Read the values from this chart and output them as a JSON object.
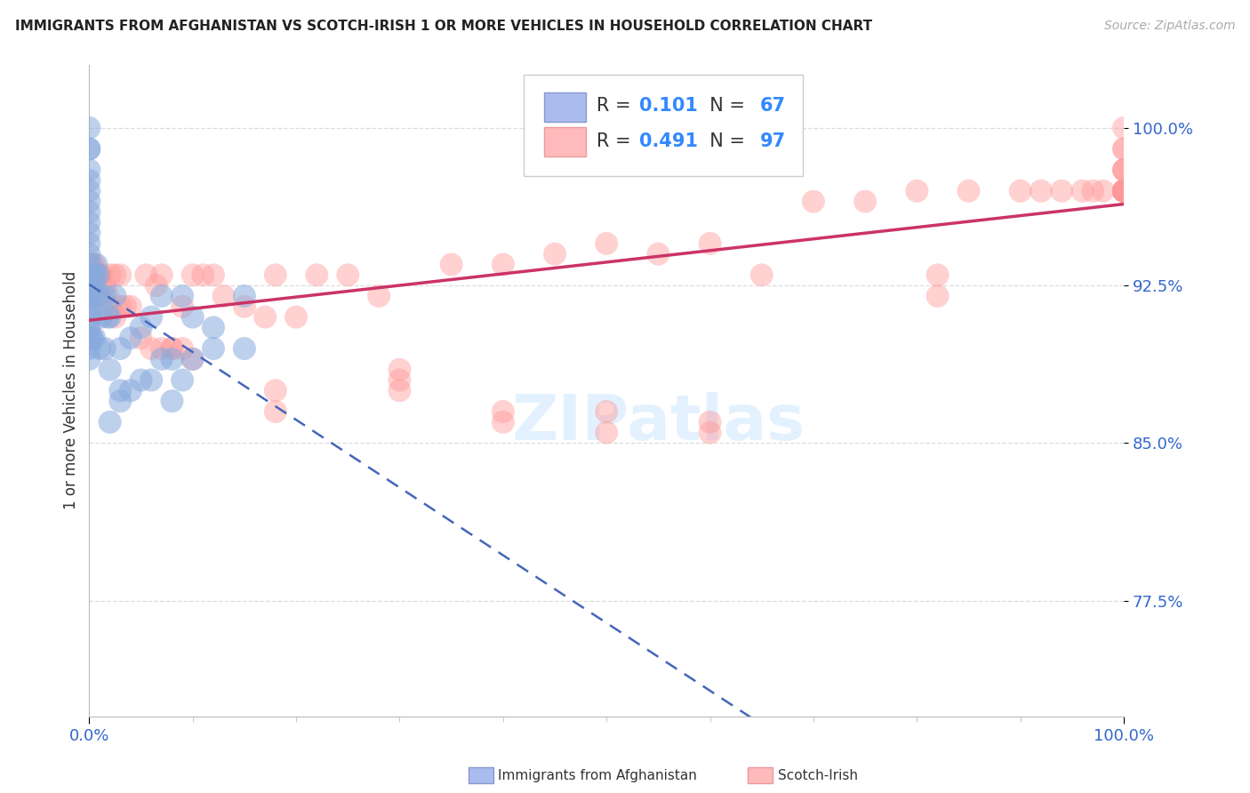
{
  "title": "IMMIGRANTS FROM AFGHANISTAN VS SCOTCH-IRISH 1 OR MORE VEHICLES IN HOUSEHOLD CORRELATION CHART",
  "source": "Source: ZipAtlas.com",
  "ylabel": "1 or more Vehicles in Household",
  "legend_label1": "Immigrants from Afghanistan",
  "legend_label2": "Scotch-Irish",
  "R1": "0.101",
  "N1": "67",
  "R2": "0.491",
  "N2": "97",
  "color_blue": "#88AADD",
  "color_pink": "#FF9999",
  "trend_blue": "#4466BB",
  "trend_pink": "#CC3366",
  "text_dark": "#222222",
  "text_blue_val": "#3388FF",
  "text_source": "#AAAAAA",
  "grid_color": "#DDDDDD",
  "yticks": [
    0.775,
    0.85,
    0.925,
    1.0
  ],
  "ytick_labels": [
    "77.5%",
    "85.0%",
    "92.5%",
    "100.0%"
  ],
  "xtick_labels": [
    "0.0%",
    "100.0%"
  ],
  "xlim": [
    0.0,
    1.0
  ],
  "ylim": [
    0.72,
    1.03
  ],
  "blue_x": [
    0.0,
    0.0,
    0.0,
    0.0,
    0.0,
    0.0,
    0.0,
    0.0,
    0.0,
    0.0,
    0.0,
    0.0,
    0.0,
    0.0,
    0.0,
    0.0,
    0.0,
    0.0,
    0.0,
    0.0,
    0.0,
    0.0,
    0.001,
    0.001,
    0.001,
    0.002,
    0.002,
    0.003,
    0.003,
    0.004,
    0.005,
    0.005,
    0.006,
    0.007,
    0.008,
    0.009,
    0.01,
    0.01,
    0.012,
    0.015,
    0.015,
    0.018,
    0.02,
    0.02,
    0.025,
    0.03,
    0.03,
    0.04,
    0.05,
    0.06,
    0.07,
    0.08,
    0.09,
    0.1,
    0.12,
    0.15,
    0.02,
    0.03,
    0.04,
    0.05,
    0.06,
    0.07,
    0.08,
    0.09,
    0.1,
    0.12,
    0.15
  ],
  "blue_y": [
    1.0,
    0.99,
    0.99,
    0.98,
    0.975,
    0.97,
    0.965,
    0.96,
    0.955,
    0.95,
    0.945,
    0.94,
    0.935,
    0.93,
    0.925,
    0.92,
    0.915,
    0.91,
    0.905,
    0.9,
    0.895,
    0.89,
    0.93,
    0.92,
    0.91,
    0.92,
    0.9,
    0.925,
    0.9,
    0.93,
    0.925,
    0.9,
    0.93,
    0.935,
    0.92,
    0.93,
    0.92,
    0.895,
    0.91,
    0.92,
    0.895,
    0.91,
    0.91,
    0.885,
    0.92,
    0.895,
    0.875,
    0.9,
    0.905,
    0.91,
    0.92,
    0.89,
    0.92,
    0.91,
    0.905,
    0.92,
    0.86,
    0.87,
    0.875,
    0.88,
    0.88,
    0.89,
    0.87,
    0.88,
    0.89,
    0.895,
    0.895
  ],
  "pink_x": [
    0.0,
    0.0,
    0.0,
    0.0,
    0.001,
    0.002,
    0.003,
    0.004,
    0.005,
    0.006,
    0.007,
    0.008,
    0.009,
    0.01,
    0.012,
    0.015,
    0.018,
    0.02,
    0.02,
    0.025,
    0.025,
    0.03,
    0.03,
    0.035,
    0.04,
    0.05,
    0.055,
    0.06,
    0.065,
    0.07,
    0.08,
    0.09,
    0.1,
    0.11,
    0.12,
    0.13,
    0.15,
    0.17,
    0.18,
    0.2,
    0.22,
    0.25,
    0.28,
    0.3,
    0.35,
    0.4,
    0.45,
    0.5,
    0.55,
    0.6,
    0.65,
    1.0,
    1.0,
    1.0,
    1.0,
    1.0,
    1.0,
    1.0,
    1.0,
    1.0,
    1.0,
    1.0,
    1.0,
    1.0,
    1.0,
    1.0,
    1.0,
    1.0,
    1.0,
    1.0,
    1.0,
    0.7,
    0.75,
    0.8,
    0.85,
    0.9,
    0.92,
    0.94,
    0.96,
    0.97,
    0.98,
    0.82,
    0.82,
    0.18,
    0.18,
    0.3,
    0.3,
    0.4,
    0.4,
    0.5,
    0.5,
    0.6,
    0.6,
    0.07,
    0.08,
    0.09,
    0.1
  ],
  "pink_y": [
    0.935,
    0.925,
    0.915,
    0.905,
    0.935,
    0.93,
    0.935,
    0.93,
    0.935,
    0.93,
    0.93,
    0.93,
    0.93,
    0.93,
    0.93,
    0.925,
    0.92,
    0.93,
    0.915,
    0.93,
    0.91,
    0.93,
    0.915,
    0.915,
    0.915,
    0.9,
    0.93,
    0.895,
    0.925,
    0.93,
    0.895,
    0.915,
    0.93,
    0.93,
    0.93,
    0.92,
    0.915,
    0.91,
    0.93,
    0.91,
    0.93,
    0.93,
    0.92,
    0.88,
    0.935,
    0.935,
    0.94,
    0.945,
    0.94,
    0.945,
    0.93,
    1.0,
    0.99,
    0.99,
    0.98,
    0.98,
    0.98,
    0.97,
    0.97,
    0.97,
    0.97,
    0.97,
    0.97,
    0.97,
    0.97,
    0.97,
    0.97,
    0.97,
    0.97,
    0.97,
    0.97,
    0.965,
    0.965,
    0.97,
    0.97,
    0.97,
    0.97,
    0.97,
    0.97,
    0.97,
    0.97,
    0.93,
    0.92,
    0.875,
    0.865,
    0.885,
    0.875,
    0.865,
    0.86,
    0.865,
    0.855,
    0.86,
    0.855,
    0.895,
    0.895,
    0.895,
    0.89
  ]
}
